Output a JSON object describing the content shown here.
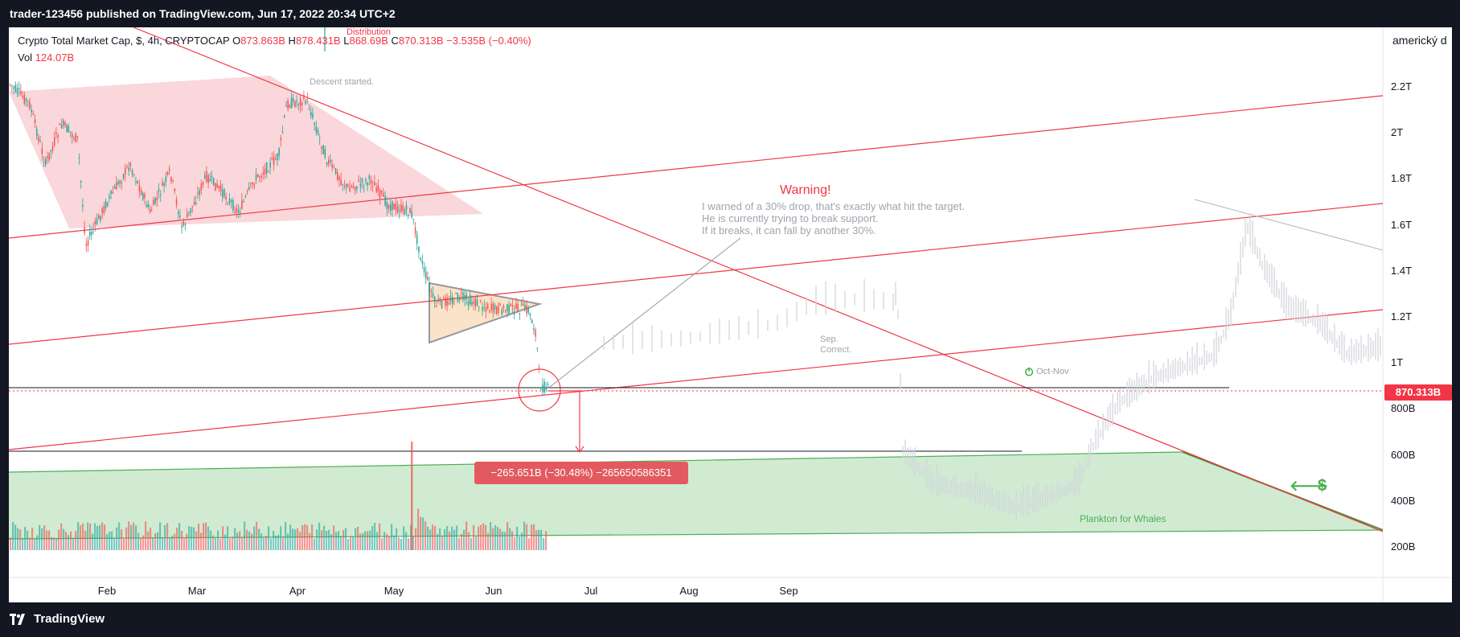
{
  "header": {
    "publish_text": "trader-123456 published on TradingView.com, Jun 17, 2022 20:34 UTC+2"
  },
  "legend": {
    "symbol": "Crypto Total Market Cap, $, 4h, CRYPTOCAP",
    "o_label": "O",
    "o_value": "873.863B",
    "h_label": "H",
    "h_value": "878.431B",
    "l_label": "L",
    "l_value": "868.69B",
    "c_label": "C",
    "c_value": "870.313B",
    "change": "−3.535B (−0.40%)",
    "vol_label": "Vol",
    "vol_value": "124.07B"
  },
  "price_axis": {
    "currency": "americký d",
    "ticks": [
      "2.2T",
      "2T",
      "1.8T",
      "1.6T",
      "1.4T",
      "1.2T",
      "1T",
      "800B",
      "600B",
      "400B",
      "200B"
    ],
    "last_price": "870.313B"
  },
  "time_axis": {
    "ticks": [
      "Feb",
      "Mar",
      "Apr",
      "May",
      "Jun",
      "Jul",
      "Aug",
      "Sep"
    ]
  },
  "annotations": {
    "warning_title": "Warning!",
    "warning_lines": [
      "I warned of a 30% drop, that's exactly what hit the target.",
      "He is currently trying to break support.",
      "If it breaks, it can fall by another 30%."
    ],
    "descent": "Descent started.",
    "distribution": "Distribution",
    "sep_line1": "Sep.",
    "sep_line2": "Correct.",
    "oct_nov": "Oct-Nov",
    "plankton": "Plankton for Whales",
    "dollar": "$",
    "measure": "−265.651B (−30.48%) −265650586351"
  },
  "colors": {
    "red": "#f23645",
    "green": "#4caf50",
    "up_candle": "#26a69a",
    "down_candle": "#ef5350",
    "background": "#131722"
  },
  "footer": {
    "brand": "TradingView"
  },
  "icons": [
    "tradingview-logo-icon",
    "power-icon",
    "left-arrow-icon"
  ]
}
